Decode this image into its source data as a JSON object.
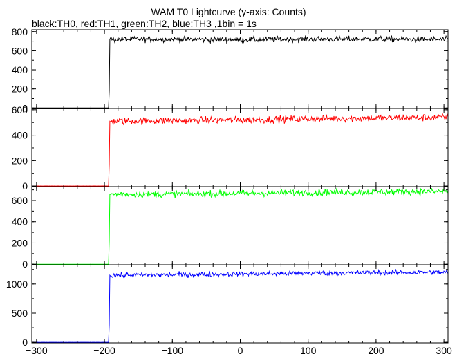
{
  "chart_data": {
    "type": "line",
    "title": "WAM T0 Lightcurve (y-axis: Counts)",
    "subtitle": "black:TH0, red:TH1, green:TH2, blue:TH3 ,1bin = 1s",
    "x_range": [
      -307,
      306
    ],
    "x_ticks": [
      -300,
      -200,
      -100,
      0,
      100,
      200,
      300
    ],
    "x_tick_labels": [
      "−300",
      "−200",
      "−100",
      "0",
      "100",
      "200",
      "300"
    ],
    "grid": false,
    "panels": [
      {
        "series": "TH0",
        "color": "#000000",
        "ylim": [
          -5,
          820
        ],
        "yticks": [
          0,
          200,
          400,
          600,
          800
        ],
        "onset_x": -192,
        "pre_level": 0,
        "post_level": 720,
        "noise": 22,
        "anchor_points": [
          [
            -300,
            0
          ],
          [
            -194,
            0
          ],
          [
            -193,
            180
          ],
          [
            -192,
            720
          ],
          [
            -100,
            720
          ],
          [
            0,
            715
          ],
          [
            100,
            720
          ],
          [
            200,
            722
          ],
          [
            300,
            715
          ]
        ]
      },
      {
        "series": "TH1",
        "color": "#ff0000",
        "ylim": [
          -5,
          610
        ],
        "yticks": [
          0,
          200,
          400,
          600
        ],
        "onset_x": -192,
        "pre_level": 0,
        "post_level": 515,
        "noise": 20,
        "anchor_points": [
          [
            -300,
            0
          ],
          [
            -194,
            0
          ],
          [
            -193,
            170
          ],
          [
            -192,
            510
          ],
          [
            -100,
            515
          ],
          [
            0,
            520
          ],
          [
            100,
            530
          ],
          [
            200,
            535
          ],
          [
            300,
            540
          ]
        ]
      },
      {
        "series": "TH2",
        "color": "#00ff00",
        "ylim": [
          -5,
          730
        ],
        "yticks": [
          0,
          200,
          400,
          600
        ],
        "onset_x": -192,
        "pre_level": 0,
        "post_level": 660,
        "noise": 22,
        "anchor_points": [
          [
            -300,
            0
          ],
          [
            -194,
            0
          ],
          [
            -193,
            220
          ],
          [
            -192,
            660
          ],
          [
            -100,
            660
          ],
          [
            0,
            665
          ],
          [
            100,
            675
          ],
          [
            200,
            680
          ],
          [
            300,
            685
          ]
        ]
      },
      {
        "series": "TH3",
        "color": "#0000ff",
        "ylim": [
          -10,
          1330
        ],
        "yticks": [
          0,
          500,
          1000
        ],
        "onset_x": -192,
        "pre_level": 0,
        "post_level": 1160,
        "noise": 30,
        "anchor_points": [
          [
            -300,
            0
          ],
          [
            -194,
            0
          ],
          [
            -193,
            300
          ],
          [
            -192,
            1150
          ],
          [
            -100,
            1160
          ],
          [
            0,
            1170
          ],
          [
            100,
            1185
          ],
          [
            200,
            1195
          ],
          [
            300,
            1200
          ]
        ]
      }
    ]
  }
}
